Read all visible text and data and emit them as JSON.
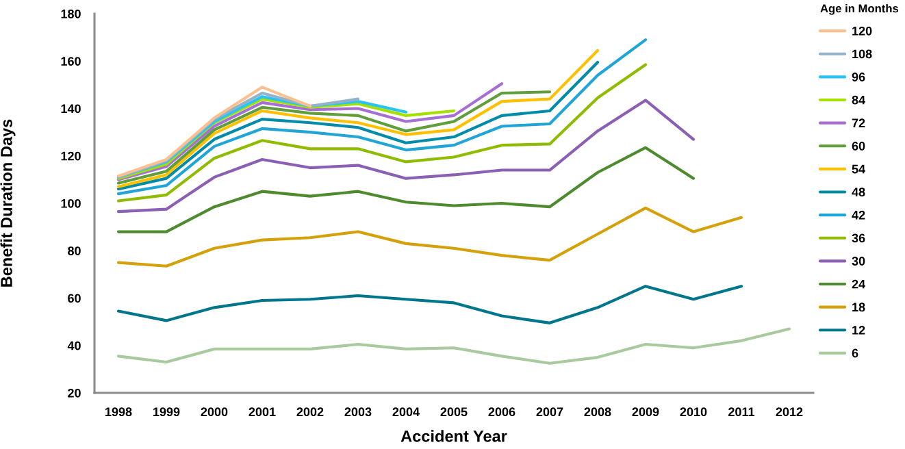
{
  "chart_data": {
    "type": "line",
    "xlabel": "Accident Year",
    "ylabel": "Benefit Duration Days",
    "legend_title": "Age in Months",
    "categories": [
      "1998",
      "1999",
      "2000",
      "2001",
      "2002",
      "2003",
      "2004",
      "2005",
      "2006",
      "2007",
      "2008",
      "2009",
      "2010",
      "2011",
      "2012"
    ],
    "ylim": [
      20,
      180
    ],
    "yticks": [
      20,
      40,
      60,
      80,
      100,
      120,
      140,
      160,
      180
    ],
    "legend": "right",
    "line_style": "solid",
    "series": [
      {
        "name": "120",
        "color": "#fac090",
        "values": [
          111.5,
          118.5,
          136,
          149,
          141,
          null,
          null,
          null,
          null,
          null,
          null,
          null,
          null,
          null,
          null
        ]
      },
      {
        "name": "108",
        "color": "#93b3c8",
        "values": [
          111,
          118,
          135.5,
          146.5,
          141,
          144,
          null,
          null,
          null,
          null,
          null,
          null,
          null,
          null,
          null
        ]
      },
      {
        "name": "96",
        "color": "#29c4f5",
        "values": [
          111,
          117.5,
          134.5,
          145,
          141,
          143,
          138.5,
          null,
          null,
          null,
          null,
          null,
          null,
          null,
          null
        ]
      },
      {
        "name": "84",
        "color": "#a5e000",
        "values": [
          110.5,
          116.5,
          134,
          144,
          140.5,
          142,
          137,
          139,
          null,
          null,
          null,
          null,
          null,
          null,
          null
        ]
      },
      {
        "name": "72",
        "color": "#a66fd4",
        "values": [
          110,
          115.5,
          132.5,
          142.5,
          139.5,
          140,
          134.5,
          137,
          150.5,
          null,
          null,
          null,
          null,
          null,
          null
        ]
      },
      {
        "name": "60",
        "color": "#5f9e3a",
        "values": [
          108.5,
          113.5,
          131,
          140.5,
          138,
          137,
          130.5,
          134.5,
          146.5,
          147,
          null,
          null,
          null,
          null,
          null
        ]
      },
      {
        "name": "54",
        "color": "#ffc000",
        "values": [
          107,
          112,
          129.5,
          139,
          136,
          134,
          129,
          131,
          143,
          144,
          164.5,
          null,
          null,
          null,
          null
        ]
      },
      {
        "name": "48",
        "color": "#008ca8",
        "values": [
          106,
          110.5,
          127,
          135.5,
          134,
          132,
          125.5,
          128,
          137,
          139,
          159.5,
          null,
          null,
          null,
          null
        ]
      },
      {
        "name": "42",
        "color": "#21a5d6",
        "values": [
          104,
          107.5,
          124,
          131.5,
          130,
          128,
          122.5,
          124.5,
          132.5,
          133.5,
          154,
          169,
          null,
          null,
          null
        ]
      },
      {
        "name": "36",
        "color": "#8fbc00",
        "values": [
          101,
          103.5,
          119,
          126.5,
          123,
          123,
          117.5,
          119.5,
          124.5,
          125,
          144.5,
          158.5,
          null,
          null,
          null
        ]
      },
      {
        "name": "30",
        "color": "#8b5fb4",
        "values": [
          96.5,
          97.5,
          111,
          118.5,
          115,
          116,
          110.5,
          112,
          114,
          114,
          130.5,
          143.5,
          127,
          null,
          null
        ]
      },
      {
        "name": "24",
        "color": "#4e8a2e",
        "values": [
          88,
          88,
          98.5,
          105,
          103,
          105,
          100.5,
          99,
          100,
          98.5,
          113,
          123.5,
          110.5,
          null,
          null
        ]
      },
      {
        "name": "18",
        "color": "#d4a10a",
        "values": [
          75,
          73.5,
          81,
          84.5,
          85.5,
          88,
          83,
          81,
          78,
          76,
          87,
          98,
          88,
          94,
          null
        ]
      },
      {
        "name": "12",
        "color": "#00768c",
        "values": [
          54.5,
          50.5,
          56,
          59,
          59.5,
          61,
          59.5,
          58,
          52.5,
          49.5,
          56,
          65,
          59.5,
          65,
          null
        ]
      },
      {
        "name": "6",
        "color": "#a9c99e",
        "values": [
          35.5,
          33,
          38.5,
          38.5,
          38.5,
          40.5,
          38.5,
          39,
          35.5,
          32.5,
          35,
          40.5,
          39,
          42,
          47
        ]
      }
    ]
  }
}
